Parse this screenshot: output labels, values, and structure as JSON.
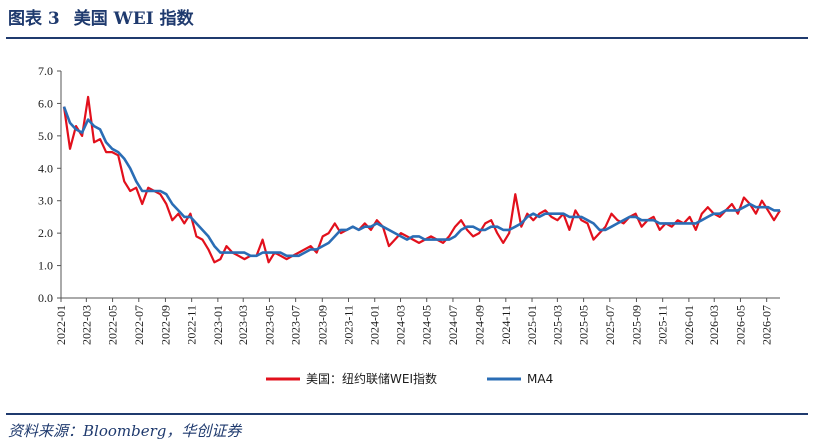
{
  "figure": {
    "label": "图表 3",
    "title": "美国 WEI 指数",
    "source": "资料来源：Bloomberg，华创证券"
  },
  "colors": {
    "wei": "#e2101c",
    "ma4": "#2a6db5",
    "rule": "#1f3a6e",
    "axis": "#555555"
  },
  "chart_data": {
    "type": "line",
    "title": "",
    "xlabel": "",
    "ylabel": "",
    "ylim": [
      0,
      7
    ],
    "yticks": [
      "0.0",
      "1.0",
      "2.0",
      "3.0",
      "4.0",
      "5.0",
      "6.0",
      "7.0"
    ],
    "x_range": [
      "2022-01",
      "2026-08"
    ],
    "xticks": [
      "2022-01",
      "2022-03",
      "2022-05",
      "2022-07",
      "2022-09",
      "2022-11",
      "2023-01",
      "2023-03",
      "2023-05",
      "2023-07",
      "2023-09",
      "2023-11",
      "2024-01",
      "2024-03",
      "2024-05",
      "2024-07",
      "2024-09",
      "2024-11",
      "2025-01",
      "2025-03",
      "2025-05",
      "2025-07",
      "2025-09",
      "2025-11",
      "2026-01",
      "2026-03",
      "2026-05",
      "2026-07"
    ],
    "grid": false,
    "legend_position": "bottom-center",
    "series": [
      {
        "name": "美国：纽约联储WEI指数",
        "x": [
          "2022-01-08",
          "2022-01-22",
          "2022-02-05",
          "2022-02-19",
          "2022-03-05",
          "2022-03-19",
          "2022-04-02",
          "2022-04-16",
          "2022-04-30",
          "2022-05-14",
          "2022-05-28",
          "2022-06-11",
          "2022-06-25",
          "2022-07-09",
          "2022-07-23",
          "2022-08-06",
          "2022-08-20",
          "2022-09-03",
          "2022-09-17",
          "2022-10-01",
          "2022-10-15",
          "2022-10-29",
          "2022-11-12",
          "2022-11-26",
          "2022-12-10",
          "2022-12-24",
          "2023-01-07",
          "2023-01-21",
          "2023-02-04",
          "2023-02-18",
          "2023-03-04",
          "2023-03-18",
          "2023-04-01",
          "2023-04-15",
          "2023-04-29",
          "2023-05-13",
          "2023-05-27",
          "2023-06-10",
          "2023-06-24",
          "2023-07-08",
          "2023-07-22",
          "2023-08-05",
          "2023-08-19",
          "2023-09-02",
          "2023-09-16",
          "2023-09-30",
          "2023-10-14",
          "2023-10-28",
          "2023-11-11",
          "2023-11-25",
          "2023-12-09",
          "2023-12-23",
          "2024-01-06",
          "2024-01-20",
          "2024-02-03",
          "2024-02-17",
          "2024-03-02",
          "2024-03-16",
          "2024-03-30",
          "2024-04-13",
          "2024-04-27",
          "2024-05-11",
          "2024-05-25",
          "2024-06-08",
          "2024-06-22",
          "2024-07-06",
          "2024-07-20",
          "2024-08-03",
          "2024-08-17",
          "2024-08-31",
          "2024-09-14",
          "2024-09-28",
          "2024-10-12",
          "2024-10-26",
          "2024-11-09",
          "2024-11-23",
          "2024-12-07",
          "2024-12-21",
          "2025-01-04",
          "2025-01-18",
          "2025-02-01",
          "2025-02-15",
          "2025-03-01",
          "2025-03-15",
          "2025-03-29",
          "2025-04-12",
          "2025-04-26",
          "2025-05-10",
          "2025-05-24",
          "2025-06-07",
          "2025-06-21",
          "2025-07-05",
          "2025-07-19",
          "2025-08-02",
          "2025-08-16",
          "2025-08-30",
          "2025-09-13",
          "2025-09-27",
          "2025-10-11",
          "2025-10-25",
          "2025-11-08",
          "2025-11-22",
          "2025-12-06",
          "2025-12-20",
          "2026-01-03",
          "2026-01-17",
          "2026-01-31",
          "2026-02-14",
          "2026-02-28",
          "2026-03-14",
          "2026-03-28",
          "2026-04-11",
          "2026-04-25",
          "2026-05-09",
          "2026-05-23",
          "2026-06-06",
          "2026-06-20",
          "2026-07-04",
          "2026-07-18",
          "2026-08-01"
        ],
        "values": [
          5.9,
          4.6,
          5.3,
          5.0,
          6.2,
          4.8,
          4.9,
          4.5,
          4.5,
          4.4,
          3.6,
          3.3,
          3.4,
          2.9,
          3.4,
          3.3,
          3.2,
          2.9,
          2.4,
          2.6,
          2.3,
          2.6,
          1.9,
          1.8,
          1.5,
          1.1,
          1.2,
          1.6,
          1.4,
          1.3,
          1.2,
          1.3,
          1.3,
          1.8,
          1.1,
          1.4,
          1.3,
          1.2,
          1.3,
          1.4,
          1.5,
          1.6,
          1.4,
          1.9,
          2.0,
          2.3,
          2.0,
          2.1,
          2.2,
          2.1,
          2.3,
          2.1,
          2.4,
          2.2,
          1.6,
          1.8,
          2.0,
          1.9,
          1.8,
          1.7,
          1.8,
          1.9,
          1.8,
          1.7,
          1.9,
          2.2,
          2.4,
          2.1,
          1.9,
          2.0,
          2.3,
          2.4,
          2.0,
          1.7,
          2.0,
          3.2,
          2.2,
          2.6,
          2.4,
          2.6,
          2.7,
          2.5,
          2.4,
          2.6,
          2.1,
          2.7,
          2.4,
          2.3,
          1.8,
          2.0,
          2.2,
          2.6,
          2.4,
          2.3,
          2.5,
          2.6,
          2.2,
          2.4,
          2.5,
          2.1,
          2.3,
          2.2,
          2.4,
          2.3,
          2.5,
          2.1,
          2.6,
          2.8,
          2.6,
          2.5,
          2.7,
          2.9,
          2.6,
          3.1,
          2.9,
          2.6,
          3.0,
          2.7,
          2.4,
          2.7
        ]
      },
      {
        "name": "MA4",
        "x": [
          "2022-01-08",
          "2022-01-22",
          "2022-02-05",
          "2022-02-19",
          "2022-03-05",
          "2022-03-19",
          "2022-04-02",
          "2022-04-16",
          "2022-04-30",
          "2022-05-14",
          "2022-05-28",
          "2022-06-11",
          "2022-06-25",
          "2022-07-09",
          "2022-07-23",
          "2022-08-06",
          "2022-08-20",
          "2022-09-03",
          "2022-09-17",
          "2022-10-01",
          "2022-10-15",
          "2022-10-29",
          "2022-11-12",
          "2022-11-26",
          "2022-12-10",
          "2022-12-24",
          "2023-01-07",
          "2023-01-21",
          "2023-02-04",
          "2023-02-18",
          "2023-03-04",
          "2023-03-18",
          "2023-04-01",
          "2023-04-15",
          "2023-04-29",
          "2023-05-13",
          "2023-05-27",
          "2023-06-10",
          "2023-06-24",
          "2023-07-08",
          "2023-07-22",
          "2023-08-05",
          "2023-08-19",
          "2023-09-02",
          "2023-09-16",
          "2023-09-30",
          "2023-10-14",
          "2023-10-28",
          "2023-11-11",
          "2023-11-25",
          "2023-12-09",
          "2023-12-23",
          "2024-01-06",
          "2024-01-20",
          "2024-02-03",
          "2024-02-17",
          "2024-03-02",
          "2024-03-16",
          "2024-03-30",
          "2024-04-13",
          "2024-04-27",
          "2024-05-11",
          "2024-05-25",
          "2024-06-08",
          "2024-06-22",
          "2024-07-06",
          "2024-07-20",
          "2024-08-03",
          "2024-08-17",
          "2024-08-31",
          "2024-09-14",
          "2024-09-28",
          "2024-10-12",
          "2024-10-26",
          "2024-11-09",
          "2024-11-23",
          "2024-12-07",
          "2024-12-21",
          "2025-01-04",
          "2025-01-18",
          "2025-02-01",
          "2025-02-15",
          "2025-03-01",
          "2025-03-15",
          "2025-03-29",
          "2025-04-12",
          "2025-04-26",
          "2025-05-10",
          "2025-05-24",
          "2025-06-07",
          "2025-06-21",
          "2025-07-05",
          "2025-07-19",
          "2025-08-02",
          "2025-08-16",
          "2025-08-30",
          "2025-09-13",
          "2025-09-27",
          "2025-10-11",
          "2025-10-25",
          "2025-11-08",
          "2025-11-22",
          "2025-12-06",
          "2025-12-20",
          "2026-01-03",
          "2026-01-17",
          "2026-01-31",
          "2026-02-14",
          "2026-02-28",
          "2026-03-14",
          "2026-03-28",
          "2026-04-11",
          "2026-04-25",
          "2026-05-09",
          "2026-05-23",
          "2026-06-06",
          "2026-06-20",
          "2026-07-04",
          "2026-07-18",
          "2026-08-01"
        ],
        "values": [
          5.9,
          5.4,
          5.2,
          5.1,
          5.5,
          5.3,
          5.2,
          4.8,
          4.6,
          4.5,
          4.3,
          4.0,
          3.6,
          3.3,
          3.3,
          3.3,
          3.3,
          3.2,
          2.9,
          2.7,
          2.5,
          2.5,
          2.3,
          2.1,
          1.9,
          1.6,
          1.4,
          1.4,
          1.4,
          1.4,
          1.4,
          1.3,
          1.3,
          1.4,
          1.4,
          1.4,
          1.4,
          1.3,
          1.3,
          1.3,
          1.4,
          1.5,
          1.5,
          1.6,
          1.7,
          1.9,
          2.1,
          2.1,
          2.2,
          2.1,
          2.2,
          2.2,
          2.3,
          2.2,
          2.1,
          2.0,
          1.9,
          1.8,
          1.9,
          1.9,
          1.8,
          1.8,
          1.8,
          1.8,
          1.8,
          1.9,
          2.1,
          2.2,
          2.2,
          2.1,
          2.1,
          2.2,
          2.2,
          2.1,
          2.1,
          2.2,
          2.3,
          2.5,
          2.6,
          2.5,
          2.6,
          2.6,
          2.6,
          2.6,
          2.5,
          2.5,
          2.5,
          2.4,
          2.3,
          2.1,
          2.1,
          2.2,
          2.3,
          2.4,
          2.5,
          2.5,
          2.4,
          2.4,
          2.4,
          2.3,
          2.3,
          2.3,
          2.3,
          2.3,
          2.3,
          2.3,
          2.4,
          2.5,
          2.6,
          2.6,
          2.7,
          2.7,
          2.7,
          2.8,
          2.9,
          2.8,
          2.8,
          2.8,
          2.7,
          2.7
        ]
      }
    ]
  }
}
